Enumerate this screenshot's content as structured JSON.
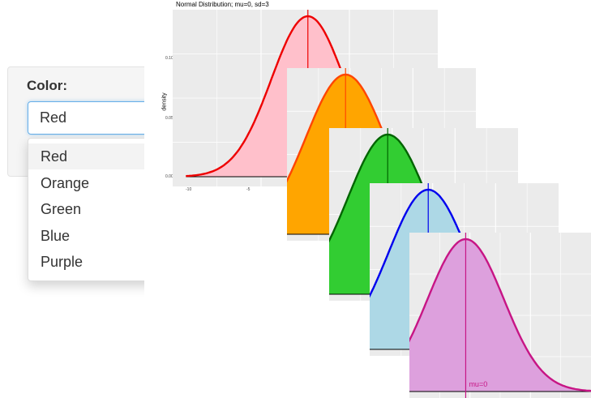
{
  "sidebar": {
    "color_label": "Color:",
    "selected": "Red",
    "options": [
      "Red",
      "Orange",
      "Green",
      "Blue",
      "Purple"
    ]
  },
  "plot": {
    "title": "Normal Distribution; mu=0, sd=3",
    "ylabel": "density",
    "yticks": [
      "0.10",
      "0.05",
      "0.00"
    ],
    "xticks": [
      "-10",
      "-5"
    ],
    "annotation": "mu=0"
  },
  "chart_data": {
    "type": "area",
    "distribution": "normal",
    "mu": 0,
    "sd": 3,
    "xlim": [
      -10,
      10
    ],
    "ylim": [
      0,
      0.133
    ],
    "curves": [
      {
        "color": "Red",
        "fill": "#ffc0cb",
        "line": "#ee0000"
      },
      {
        "color": "Orange",
        "fill": "#ffa500",
        "line": "#ff4500"
      },
      {
        "color": "Green",
        "fill": "#32cd32",
        "line": "#006400"
      },
      {
        "color": "Blue",
        "fill": "#add8e6",
        "line": "#0000ee"
      },
      {
        "color": "Purple",
        "fill": "#dda0dd",
        "line": "#c71585"
      }
    ]
  }
}
